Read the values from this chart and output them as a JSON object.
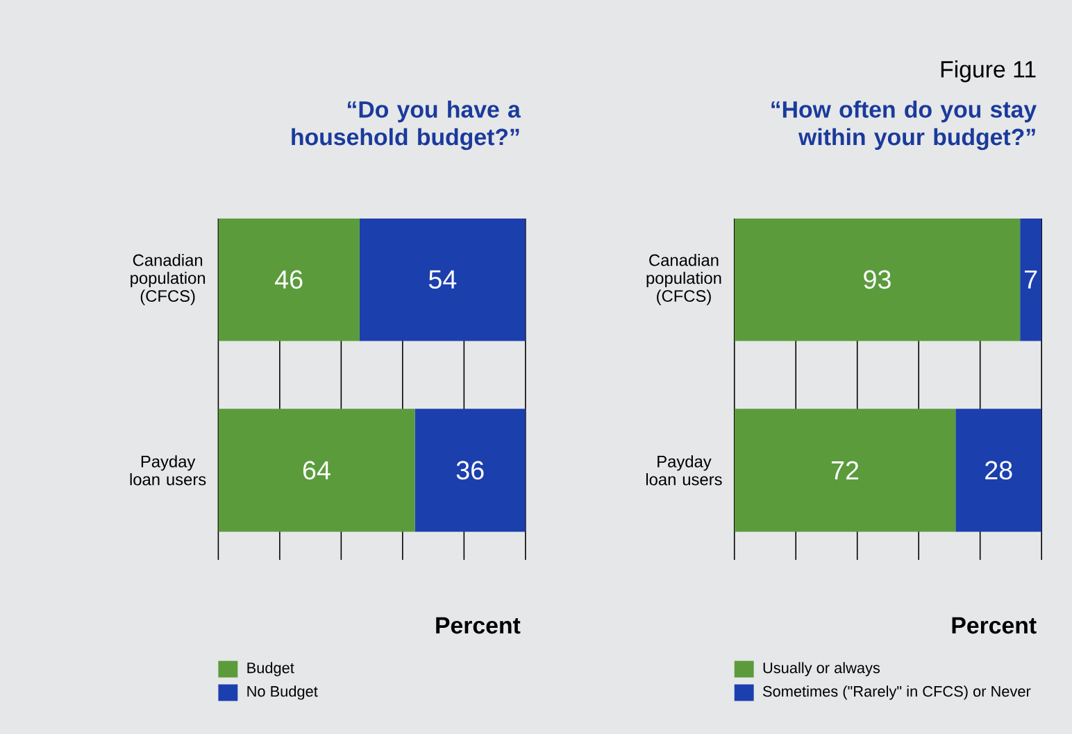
{
  "chart_data": [
    {
      "type": "bar",
      "orientation": "horizontal",
      "stacked": true,
      "title": "“Do you have a household budget?”",
      "xlabel": "Percent",
      "categories": [
        "Canadian population (CFCS)",
        "Payday loan users"
      ],
      "series": [
        {
          "name": "Budget",
          "color": "#5b9b3c",
          "values": [
            46,
            64
          ]
        },
        {
          "name": "No Budget",
          "color": "#1c3fae",
          "values": [
            54,
            36
          ]
        }
      ],
      "tick_labels": "y",
      "grid": "x",
      "legend": "bottom left",
      "data_labels": true
    },
    {
      "type": "bar",
      "orientation": "horizontal",
      "stacked": true,
      "title": "“How often do you stay within your budget?”",
      "xlabel": "Percent",
      "annotations": [
        "Figure 11"
      ],
      "categories": [
        "Canadian population (CFCS)",
        "Payday loan users"
      ],
      "series": [
        {
          "name": "Usually or always",
          "color": "#5b9b3c",
          "values": [
            93,
            72
          ]
        },
        {
          "name": "Sometimes (\"Rarely\" in CFCS) or Never",
          "color": "#1c3fae",
          "values": [
            7,
            28
          ]
        }
      ],
      "tick_labels": "y",
      "grid": "x",
      "legend": "bottom left",
      "data_labels": true
    }
  ]
}
